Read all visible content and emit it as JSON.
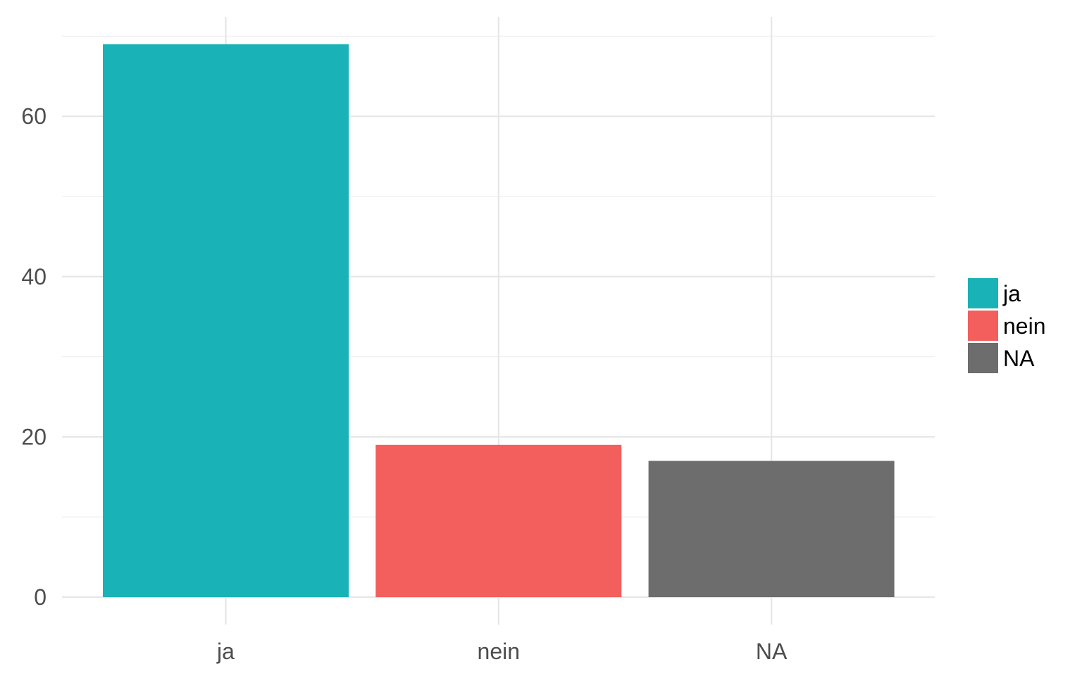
{
  "chart_data": {
    "type": "bar",
    "title": "",
    "xlabel": "",
    "ylabel": "",
    "categories": [
      "ja",
      "nein",
      "NA"
    ],
    "values": [
      69,
      19,
      17
    ],
    "colors": [
      "#19b3b7",
      "#f25f5c",
      "#6d6d6d"
    ],
    "ylim": [
      0,
      70
    ],
    "y_ticks": [
      0,
      20,
      40,
      60
    ],
    "y_tick_labels": [
      "0",
      "20",
      "40",
      "60"
    ],
    "grid": true,
    "legend": {
      "position": "right",
      "entries": [
        "ja",
        "nein",
        "NA"
      ]
    }
  }
}
